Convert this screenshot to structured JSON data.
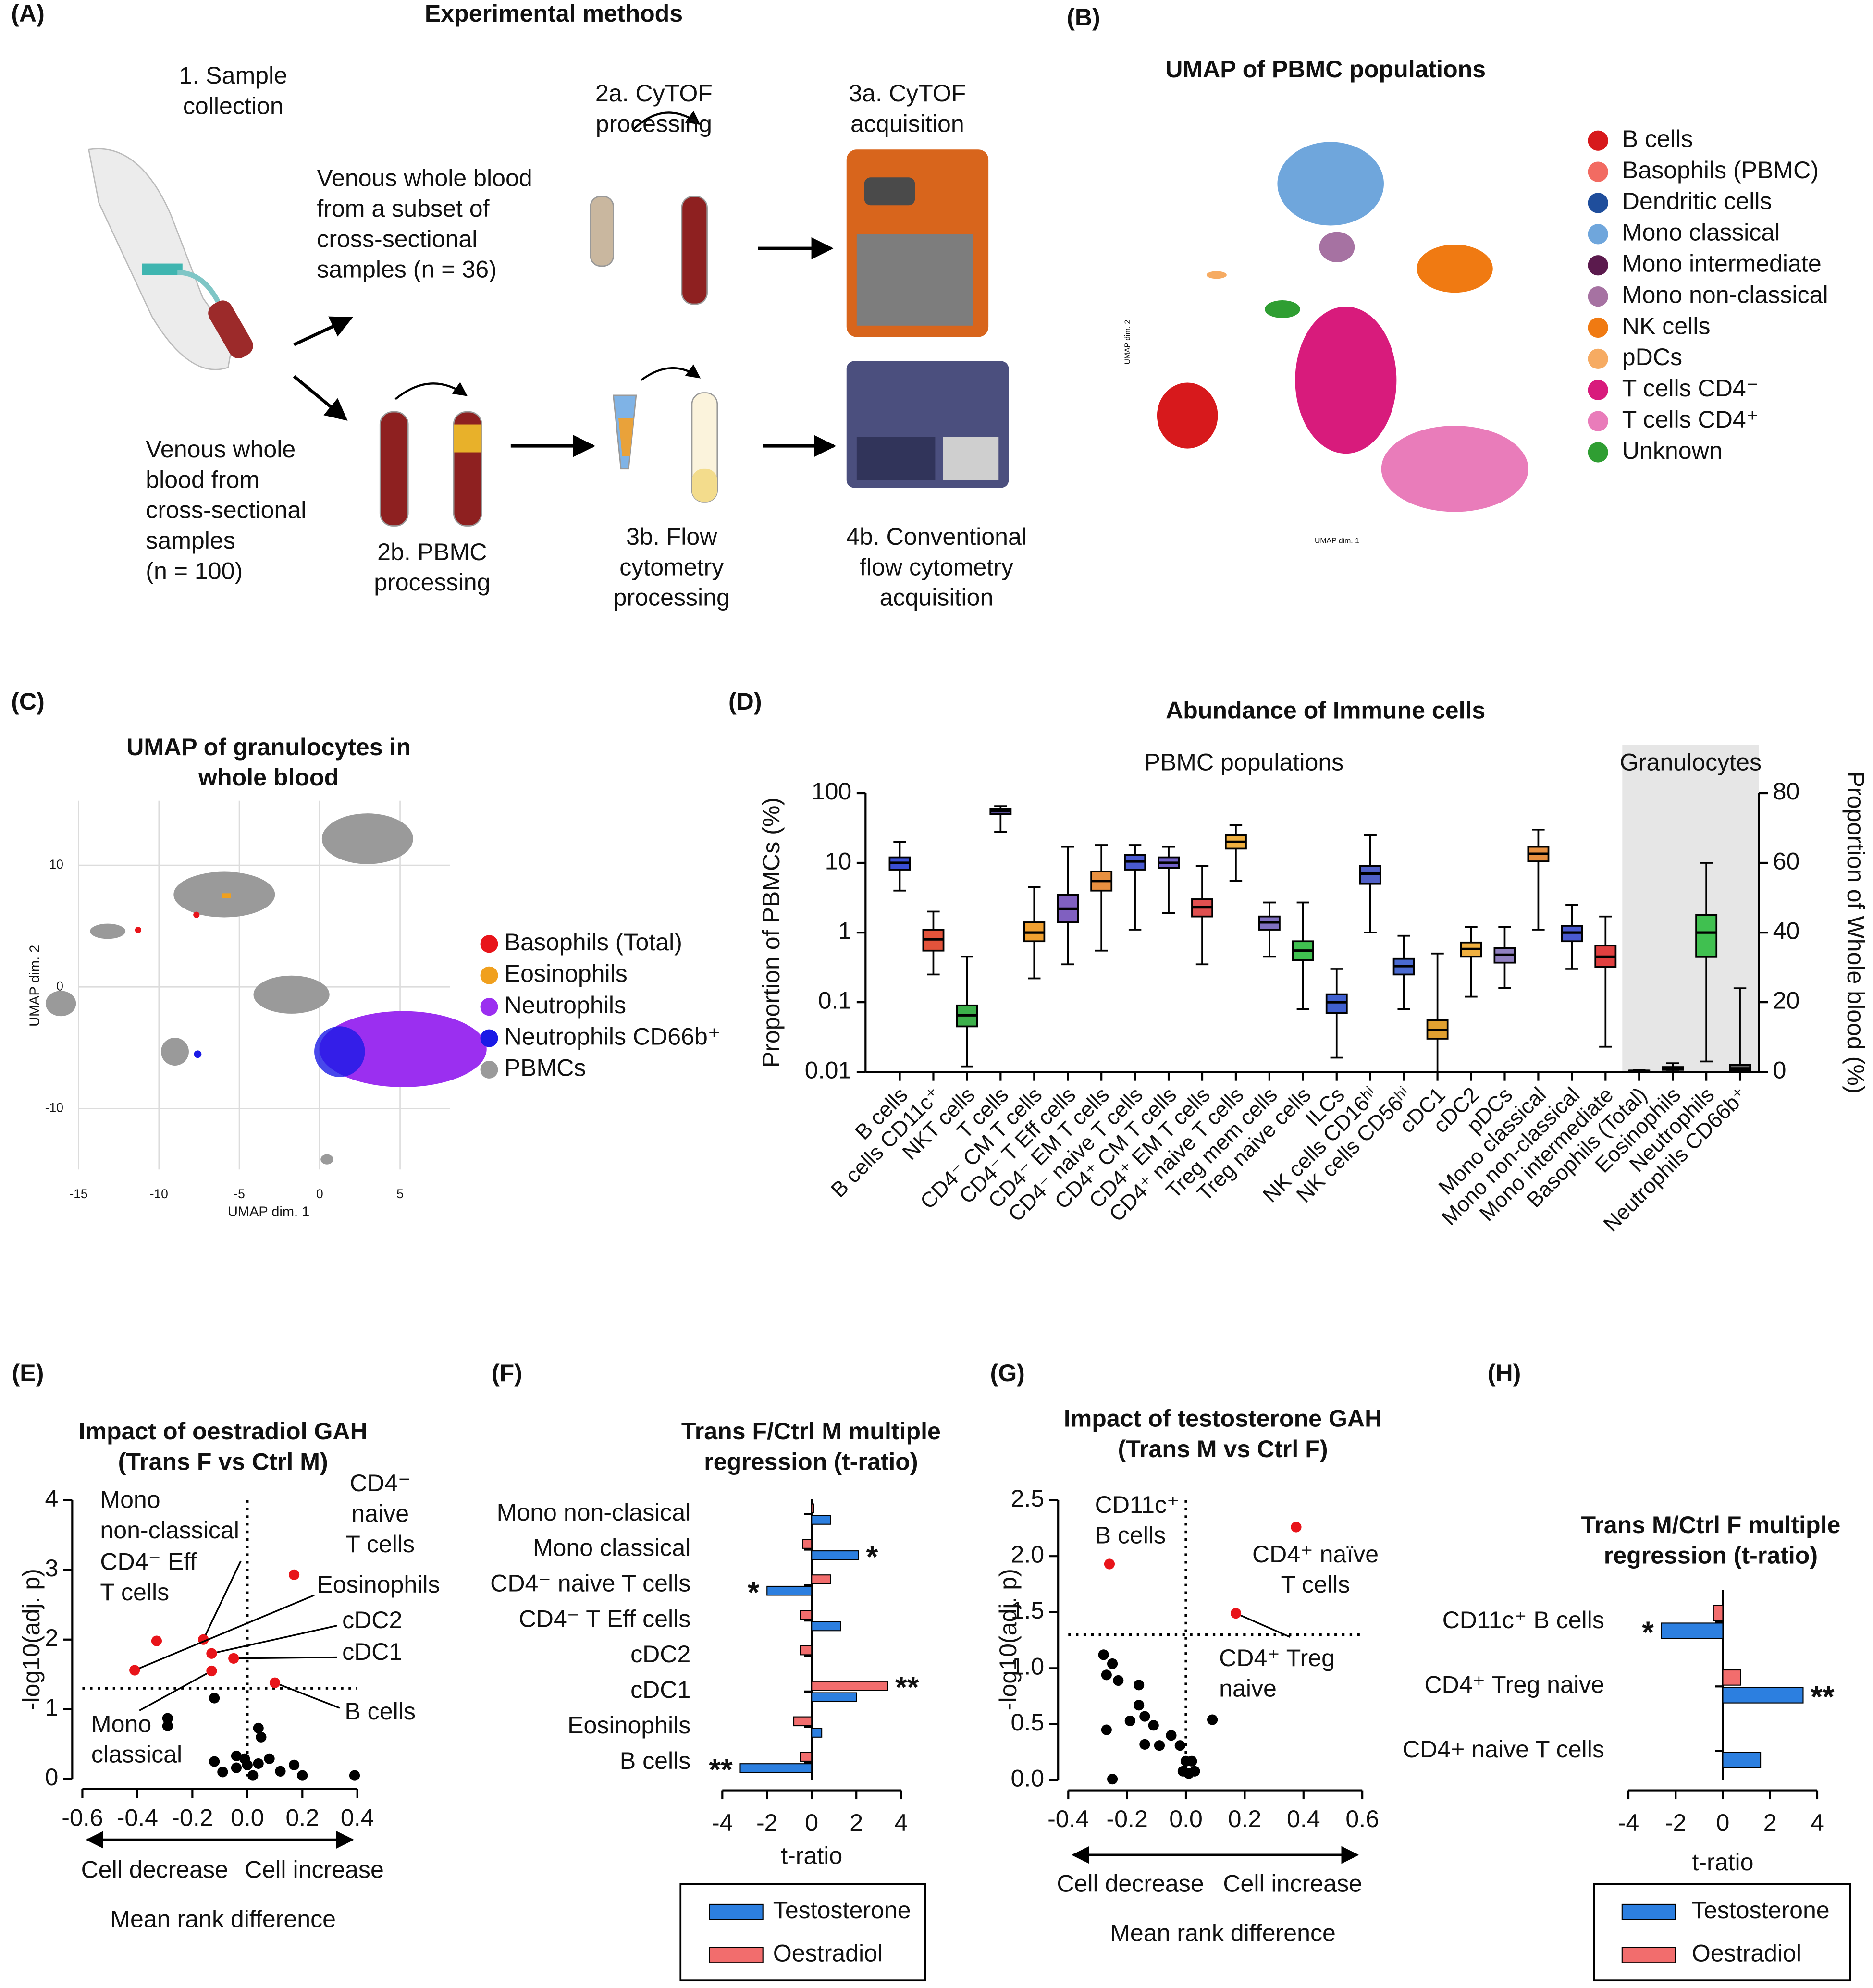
{
  "panel_labels": [
    "(A)",
    "(B)",
    "(C)",
    "(D)",
    "(E)",
    "(F)",
    "(G)",
    "(H)"
  ],
  "methods": {
    "title": "Experimental methods",
    "steps": [
      [
        "1. Sample",
        "collection"
      ],
      [
        "Venous whole blood",
        "from a subset of",
        "cross-sectional",
        "samples (n = 36)"
      ],
      [
        "Venous whole",
        "blood from",
        "cross-sectional",
        "samples",
        "(n = 100)"
      ],
      [
        "2a. CyTOF",
        "processing"
      ],
      [
        "3a. CyTOF",
        "acquisition"
      ],
      [
        "2b. PBMC",
        "processing"
      ],
      [
        "3b. Flow",
        "cytometry",
        "processing"
      ],
      [
        "4b. Conventional",
        "flow cytometry",
        "acquisition"
      ]
    ]
  },
  "umap_pbmc": {
    "title": "UMAP of PBMC populations",
    "x_label": "UMAP dim. 1",
    "y_label": "UMAP dim. 2",
    "legend": [
      {
        "name": "B cells",
        "color": "#d7191c"
      },
      {
        "name": "Basophils (PBMC)",
        "color": "#f26b62"
      },
      {
        "name": "Dendritic cells",
        "color": "#1f4e9c"
      },
      {
        "name": "Mono classical",
        "color": "#6fa6dc"
      },
      {
        "name": "Mono intermediate",
        "color": "#5b1a4d"
      },
      {
        "name": "Mono non-classical",
        "color": "#a672a2"
      },
      {
        "name": "NK cells",
        "color": "#f07a12"
      },
      {
        "name": "pDCs",
        "color": "#f6ab62"
      },
      {
        "name": "T cells CD4⁻",
        "color": "#d81b7c"
      },
      {
        "name": "T cells CD4⁺",
        "color": "#e97cba"
      },
      {
        "name": "Unknown",
        "color": "#2f9e32"
      }
    ]
  },
  "umap_granulocytes": {
    "title": [
      "UMAP of granulocytes in",
      "whole blood"
    ],
    "x_label": "UMAP dim. 1",
    "y_label": "UMAP dim. 2",
    "xlim": [
      -15,
      8.1
    ],
    "ylim": [
      -15,
      15.3
    ],
    "xticks": [
      -15,
      -10,
      -5,
      0,
      5
    ],
    "yticks": [
      10,
      0,
      -10
    ],
    "legend": [
      {
        "name": "Basophils (Total)",
        "color": "#e8141a"
      },
      {
        "name": "Eosinophils",
        "color": "#f0a01e"
      },
      {
        "name": "Neutrophils",
        "color": "#9b2ff0"
      },
      {
        "name": "Neutrophils CD66b⁺",
        "color": "#1a1ae6"
      },
      {
        "name": "PBMCs",
        "color": "#9a9a9a"
      }
    ]
  },
  "chart_data": [
    {
      "type": "box",
      "title": "Abundance of Immune cells",
      "y_label": "Proportion of PBMCs (%)",
      "y2_label": "Proportion of Whole blood (%)",
      "ylog": true,
      "ylim": [
        0.01,
        100
      ],
      "yticks": [
        0.01,
        0.1,
        1,
        10,
        100
      ],
      "y2lim": [
        0,
        80
      ],
      "y2ticks": [
        0,
        20,
        40,
        60,
        80
      ],
      "groups": [
        {
          "label": "PBMC populations",
          "axis": "y"
        },
        {
          "label": "Granulocytes",
          "axis": "y2",
          "shaded": true
        }
      ],
      "boxes": [
        {
          "category": "B cells",
          "color": "#3b4fd4",
          "axis": "y",
          "min": 4,
          "q1": 8,
          "median": 10,
          "q3": 12,
          "max": 20
        },
        {
          "category": "B cells CD11c⁺",
          "color": "#e2533b",
          "axis": "y",
          "min": 0.25,
          "q1": 0.55,
          "median": 0.8,
          "q3": 1.1,
          "max": 2
        },
        {
          "category": "NKT cells",
          "color": "#3cb04a",
          "axis": "y",
          "min": 0.012,
          "q1": 0.045,
          "median": 0.065,
          "q3": 0.09,
          "max": 0.45
        },
        {
          "category": "T cells",
          "color": "#7a6ad0",
          "axis": "y",
          "min": 28,
          "q1": 50,
          "median": 55,
          "q3": 60,
          "max": 65
        },
        {
          "category": "CD4⁻ CM T cells",
          "color": "#f0a030",
          "axis": "y",
          "min": 0.22,
          "q1": 0.75,
          "median": 1,
          "q3": 1.4,
          "max": 4.5
        },
        {
          "category": "CD4⁻ T Eff cells",
          "color": "#8060c0",
          "axis": "y",
          "min": 0.35,
          "q1": 1.4,
          "median": 2.2,
          "q3": 3.5,
          "max": 17
        },
        {
          "category": "CD4⁻ EM T cells",
          "color": "#e89040",
          "axis": "y",
          "min": 0.55,
          "q1": 4,
          "median": 5.5,
          "q3": 7.5,
          "max": 18
        },
        {
          "category": "CD4⁻ naive T cells",
          "color": "#4a5ad0",
          "axis": "y",
          "min": 1.1,
          "q1": 8,
          "median": 10.5,
          "q3": 13,
          "max": 18
        },
        {
          "category": "CD4⁺ CM T cells",
          "color": "#7060c8",
          "axis": "y",
          "min": 1.9,
          "q1": 8.5,
          "median": 10,
          "q3": 12,
          "max": 17
        },
        {
          "category": "CD4⁺ EM T cells",
          "color": "#e05050",
          "axis": "y",
          "min": 0.35,
          "q1": 1.7,
          "median": 2.3,
          "q3": 3,
          "max": 9
        },
        {
          "category": "CD4⁺ naive T cells",
          "color": "#f0b040",
          "axis": "y",
          "min": 5.5,
          "q1": 16,
          "median": 20,
          "q3": 25,
          "max": 35
        },
        {
          "category": "Treg mem cells",
          "color": "#8070c0",
          "axis": "y",
          "min": 0.45,
          "q1": 1.1,
          "median": 1.4,
          "q3": 1.7,
          "max": 2.7
        },
        {
          "category": "Treg naive cells",
          "color": "#40c050",
          "axis": "y",
          "min": 0.08,
          "q1": 0.4,
          "median": 0.55,
          "q3": 0.75,
          "max": 2.7
        },
        {
          "category": "ILCs",
          "color": "#4060d0",
          "axis": "y",
          "min": 0.016,
          "q1": 0.07,
          "median": 0.1,
          "q3": 0.13,
          "max": 0.3
        },
        {
          "category": "NK cells CD16ʰⁱ",
          "color": "#5060c8",
          "axis": "y",
          "min": 1,
          "q1": 5,
          "median": 7,
          "q3": 9,
          "max": 25
        },
        {
          "category": "NK cells CD56ʰⁱ",
          "color": "#4a6ad0",
          "axis": "y",
          "min": 0.08,
          "q1": 0.25,
          "median": 0.33,
          "q3": 0.42,
          "max": 0.9
        },
        {
          "category": "cDC1",
          "color": "#e0a030",
          "axis": "y",
          "min": 0.01,
          "q1": 0.03,
          "median": 0.04,
          "q3": 0.055,
          "max": 0.5
        },
        {
          "category": "cDC2",
          "color": "#f0b040",
          "axis": "y",
          "min": 0.12,
          "q1": 0.45,
          "median": 0.58,
          "q3": 0.72,
          "max": 1.2
        },
        {
          "category": "pDCs",
          "color": "#9080c0",
          "axis": "y",
          "min": 0.16,
          "q1": 0.37,
          "median": 0.48,
          "q3": 0.6,
          "max": 1.2
        },
        {
          "category": "Mono classical",
          "color": "#e89040",
          "axis": "y",
          "min": 1.1,
          "q1": 10.5,
          "median": 13.5,
          "q3": 17,
          "max": 30
        },
        {
          "category": "Mono non-classical",
          "color": "#4a5ad0",
          "axis": "y",
          "min": 0.3,
          "q1": 0.75,
          "median": 1,
          "q3": 1.25,
          "max": 2.5
        },
        {
          "category": "Mono intermediate",
          "color": "#e04040",
          "axis": "y",
          "min": 0.023,
          "q1": 0.32,
          "median": 0.45,
          "q3": 0.65,
          "max": 1.7
        },
        {
          "category": "Basophils (Total)",
          "color": "#888888",
          "axis": "y2",
          "min": 0,
          "q1": 0.2,
          "median": 0.3,
          "q3": 0.4,
          "max": 0.6
        },
        {
          "category": "Eosinophils",
          "color": "#888888",
          "axis": "y2",
          "min": 0.1,
          "q1": 0.6,
          "median": 1,
          "q3": 1.4,
          "max": 2.5
        },
        {
          "category": "Neutrophils",
          "color": "#40c050",
          "axis": "y2",
          "min": 3,
          "q1": 33,
          "median": 40,
          "q3": 45,
          "max": 60
        },
        {
          "category": "Neutrophils CD66b⁺",
          "color": "#666666",
          "axis": "y2",
          "min": 0,
          "q1": 0.5,
          "median": 1,
          "q3": 2,
          "max": 24
        }
      ]
    },
    {
      "type": "scatter",
      "title": [
        "Impact of oestradiol GAH",
        "(Trans F vs Ctrl M)"
      ],
      "x_label": "Mean rank difference",
      "y_label": "-log10(adj. p)",
      "arrow_left": "Cell decrease",
      "arrow_right": "Cell increase",
      "xlim": [
        -0.6,
        0.4
      ],
      "ylim": [
        0,
        4
      ],
      "xticks": [
        -0.6,
        -0.4,
        -0.2,
        {
          "value": 0,
          "label": "0.0"
        },
        0.2,
        0.4
      ],
      "yticks": [
        0,
        1,
        2,
        3,
        4
      ],
      "threshold": 1.3,
      "vline": 0,
      "color": "#000000",
      "sig_color": "#e8141a",
      "x": [
        -0.33,
        -0.16,
        0.17,
        -0.41,
        -0.13,
        -0.05,
        -0.13,
        0.1,
        -0.29,
        -0.29,
        -0.12,
        0.04,
        0.05,
        -0.04,
        0,
        0.04,
        0.08,
        0.12,
        0.17,
        0.2,
        0.39,
        -0.04,
        -0.09,
        -0.12,
        0.02,
        -0.01
      ],
      "y": [
        1.98,
        2.0,
        2.93,
        1.56,
        1.8,
        1.73,
        1.55,
        1.38,
        0.87,
        0.76,
        1.16,
        0.73,
        0.6,
        0.33,
        0.2,
        0.22,
        0.29,
        0.11,
        0.2,
        0.05,
        0.05,
        0.16,
        0.1,
        0.25,
        0.05,
        0.29
      ],
      "labels": [
        [
          "CD4⁻ Eff",
          "T cells"
        ],
        [
          "Mono",
          "non-classical"
        ],
        [
          "CD4⁻",
          "naive",
          "T cells"
        ],
        [
          "Eosinophils"
        ],
        [
          "cDC2"
        ],
        [
          "cDC1"
        ],
        [
          "Mono",
          "classical"
        ],
        [
          "B cells"
        ],
        null,
        null,
        null,
        null,
        null,
        null,
        null,
        null,
        null,
        null,
        null,
        null,
        null,
        null,
        null,
        null,
        null,
        null
      ]
    },
    {
      "type": "hbar",
      "title": [
        "Trans F/Ctrl M multiple",
        "regression (t-ratio)"
      ],
      "x_label": "t-ratio",
      "xlim": [
        -4,
        4
      ],
      "xticks": [
        -4,
        -2,
        0,
        2,
        4
      ],
      "categories": [
        "Mono non-clasical",
        "Mono classical",
        "CD4⁻ naive T cells",
        "CD4⁻ T Eff cells",
        "cDC2",
        "cDC1",
        "Eosinophils",
        "B cells"
      ],
      "series": [
        {
          "name": "Testosterone",
          "color": "#2c7fe0",
          "values": [
            0.85,
            2.1,
            -2.0,
            1.3,
            0,
            2.0,
            0.45,
            -3.2
          ],
          "labels": [
            null,
            "*",
            "*",
            null,
            null,
            null,
            null,
            "**"
          ]
        },
        {
          "name": "Oestradiol",
          "color": "#f26d6d",
          "values": [
            0.1,
            -0.4,
            0.85,
            -0.5,
            -0.5,
            3.4,
            -0.8,
            -0.5
          ],
          "labels": [
            null,
            null,
            null,
            null,
            null,
            "**",
            null,
            null
          ]
        }
      ]
    },
    {
      "type": "scatter",
      "title": [
        "Impact of testosterone GAH",
        "(Trans M vs Ctrl F)"
      ],
      "x_label": "Mean rank difference",
      "y_label": "-log10(adj. p)",
      "arrow_left": "Cell decrease",
      "arrow_right": "Cell increase",
      "xlim": [
        -0.4,
        0.6
      ],
      "ylim": [
        0,
        2.5
      ],
      "xticks": [
        -0.4,
        -0.2,
        {
          "value": 0,
          "label": "0.0"
        },
        0.2,
        0.4,
        0.6
      ],
      "yticks": [
        {
          "value": 0,
          "label": "0.0"
        },
        0.5,
        {
          "value": 1,
          "label": "1.0"
        },
        1.5,
        {
          "value": 2,
          "label": "2.0"
        },
        2.5
      ],
      "threshold": 1.3,
      "vline": 0,
      "color": "#000000",
      "sig_color": "#e8141a",
      "x": [
        -0.26,
        0.375,
        0.17,
        -0.28,
        -0.25,
        -0.27,
        -0.23,
        -0.16,
        -0.16,
        -0.14,
        -0.19,
        -0.11,
        -0.27,
        -0.09,
        -0.14,
        -0.05,
        -0.02,
        0,
        0.02,
        0.03,
        -0.01,
        0.01,
        0.09,
        -0.25
      ],
      "y": [
        1.93,
        2.26,
        1.49,
        1.12,
        1.04,
        0.94,
        0.89,
        0.85,
        0.67,
        0.57,
        0.53,
        0.49,
        0.45,
        0.31,
        0.32,
        0.4,
        0.31,
        0.17,
        0.17,
        0.08,
        0.08,
        0.06,
        0.54,
        0.01
      ],
      "labels": [
        [
          "CD11c⁺",
          "B cells"
        ],
        [
          "CD4⁺ naïve",
          "T cells"
        ],
        [
          "CD4⁺ Treg",
          "naive"
        ],
        null,
        null,
        null,
        null,
        null,
        null,
        null,
        null,
        null,
        null,
        null,
        null,
        null,
        null,
        null,
        null,
        null,
        null,
        null,
        null,
        null
      ]
    },
    {
      "type": "hbar",
      "title": [
        "Trans M/Ctrl F multiple",
        "regression (t-ratio)"
      ],
      "x_label": "t-ratio",
      "xlim": [
        -4,
        4
      ],
      "xticks": [
        -4,
        -2,
        0,
        2,
        4
      ],
      "categories": [
        "CD11c⁺ B cells",
        "CD4⁺ Treg naive",
        "CD4+ naive T cells"
      ],
      "series": [
        {
          "name": "Testosterone",
          "color": "#2c7fe0",
          "values": [
            -2.6,
            3.4,
            1.6
          ],
          "labels": [
            "*",
            "**",
            null
          ]
        },
        {
          "name": "Oestradiol",
          "color": "#f26d6d",
          "values": [
            -0.4,
            0.75,
            0
          ]
        }
      ]
    }
  ]
}
